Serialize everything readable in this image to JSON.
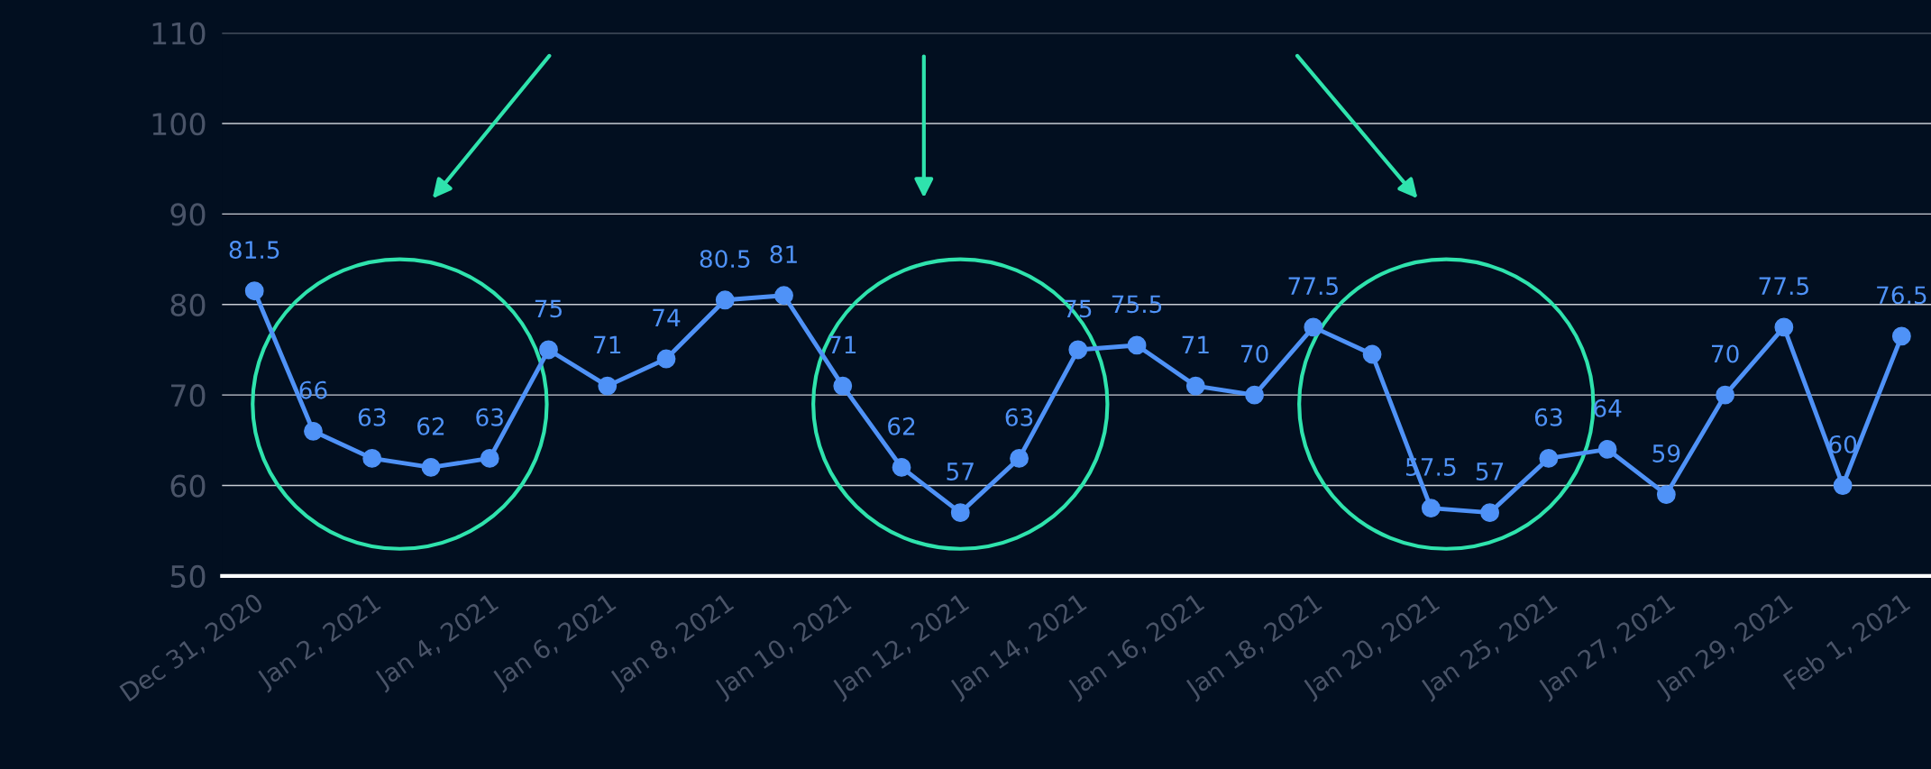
{
  "chart_data": {
    "type": "line",
    "categories": [
      "Dec 31, 2020",
      null,
      "Jan 2, 2021",
      null,
      "Jan 4, 2021",
      null,
      "Jan 6, 2021",
      null,
      "Jan 8, 2021",
      null,
      "Jan 10, 2021",
      null,
      "Jan 12, 2021",
      null,
      "Jan 14, 2021",
      null,
      "Jan 16, 2021",
      null,
      "Jan 18, 2021",
      null,
      "Jan 20, 2021",
      null,
      "Jan 25, 2021",
      null,
      "Jan 27, 2021",
      null,
      "Jan 29, 2021",
      null,
      "Feb 1, 2021"
    ],
    "series": [
      {
        "color": "#4f92f7",
        "values": [
          81.5,
          66,
          63,
          62,
          63,
          75,
          71,
          74,
          80.5,
          81,
          71,
          62,
          57,
          63,
          75,
          75.5,
          71,
          70,
          77.5,
          74.5,
          57.5,
          57,
          63,
          64,
          59,
          70,
          77.5,
          60,
          76.5
        ],
        "value_labels": [
          "81.5",
          "66",
          "63",
          "62",
          "63",
          "75",
          "71",
          "74",
          "80.5",
          "81",
          "71",
          "62",
          "57",
          "63",
          "75",
          "75.5",
          "71",
          "70",
          "77.5",
          null,
          "57.5",
          "57",
          "63",
          "64",
          "59",
          "70",
          "77.5",
          "60",
          "76.5"
        ]
      }
    ],
    "ylim": [
      50,
      110
    ],
    "yticks": [
      50,
      60,
      70,
      80,
      90,
      100,
      110
    ],
    "grid": "y",
    "marker": "circle",
    "line_style": "solid"
  }
}
